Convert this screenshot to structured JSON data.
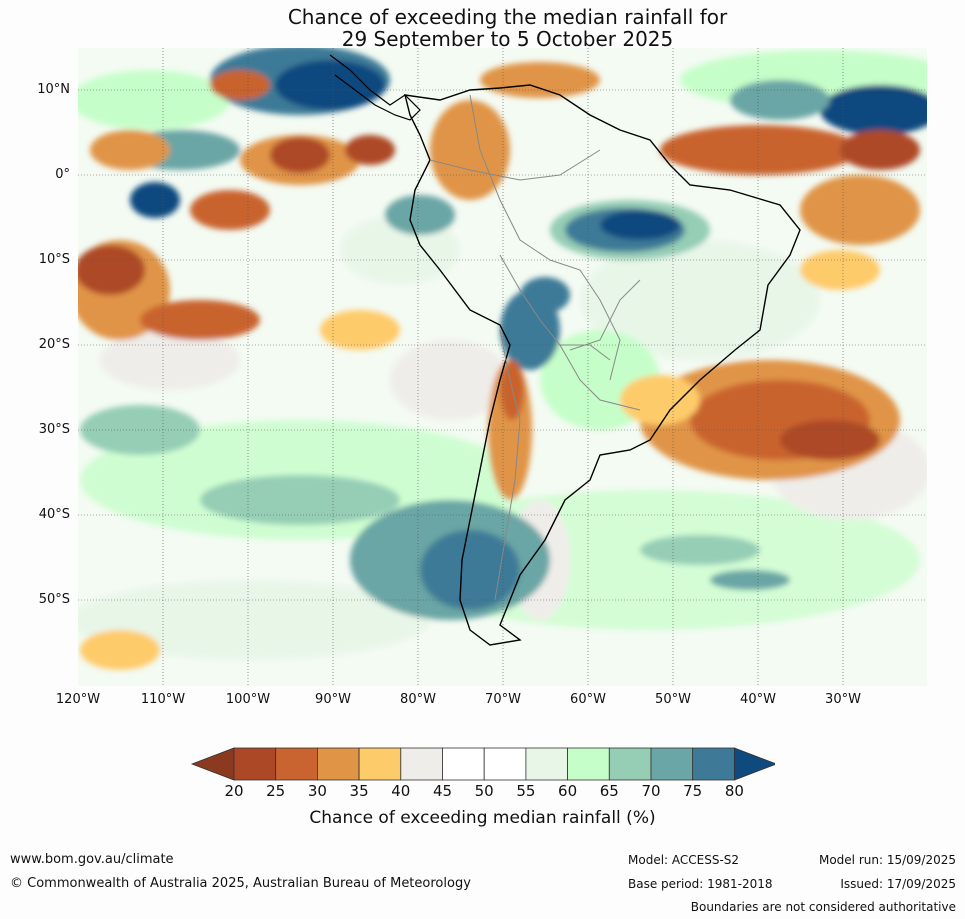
{
  "title_line1": "Chance of exceeding the median rainfall for",
  "title_line2": "29 September to 5 October 2025",
  "lat_labels": [
    "10°N",
    "0°",
    "10°S",
    "20°S",
    "30°S",
    "40°S",
    "50°S"
  ],
  "lon_labels": [
    "120°W",
    "110°W",
    "100°W",
    "90°W",
    "80°W",
    "70°W",
    "60°W",
    "50°W",
    "40°W",
    "30°W"
  ],
  "colorbar": {
    "ticks": [
      "20",
      "25",
      "30",
      "35",
      "40",
      "45",
      "50",
      "55",
      "60",
      "65",
      "70",
      "75",
      "80"
    ],
    "colors": [
      "#8c3a1f",
      "#ad4826",
      "#c9632f",
      "#e09446",
      "#fecb6a",
      "#efede9",
      "#ffffff",
      "#ffffff",
      "#e8f6e8",
      "#c6fec9",
      "#95cdb5",
      "#6aa6a5",
      "#3e7a97",
      "#0f4a7f"
    ],
    "label": "Chance of exceeding median rainfall (%)"
  },
  "footer": {
    "site": "www.bom.gov.au/climate",
    "copyright": "© Commonwealth of Australia 2025, Australian Bureau of Meteorology",
    "model": "Model: ACCESS-S2",
    "base_period": "Base period: 1981-2018",
    "model_run": "Model run: 15/09/2025",
    "issued": "Issued: 17/09/2025",
    "disclaimer": "Boundaries are not considered authoritative"
  }
}
